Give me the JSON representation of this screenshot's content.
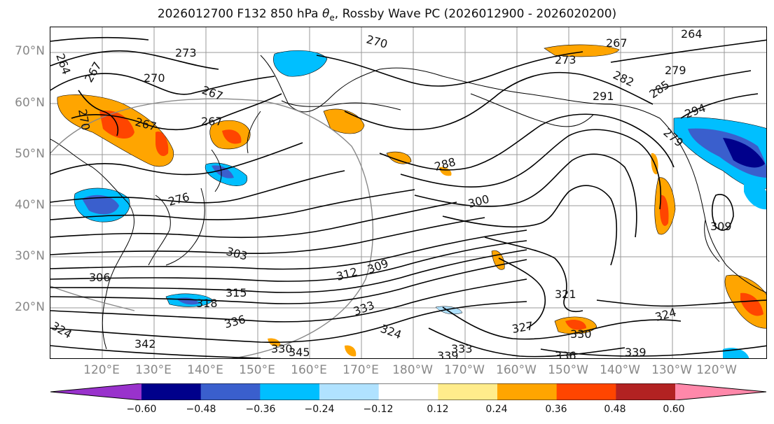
{
  "title": {
    "prefix": "2026012700 F132 850 hPa ",
    "symbol": "θ",
    "subscript": "e",
    "suffix": ", Rossby Wave PC (2026012900 - 2026020200)"
  },
  "lat_labels": [
    "70°N",
    "60°N",
    "50°N",
    "40°N",
    "30°N",
    "20°N"
  ],
  "lon_labels": [
    "120°E",
    "130°E",
    "140°E",
    "150°E",
    "160°E",
    "170°E",
    "180°W",
    "170°W",
    "160°W",
    "150°W",
    "140°W",
    "130°W",
    "120°W"
  ],
  "colorbar": {
    "colors": [
      "#9932cc",
      "#00008b",
      "#3a5fcd",
      "#00bfff",
      "#b0e2ff",
      "#ffffff",
      "#ffec8b",
      "#ffa500",
      "#ff4500",
      "#b22222",
      "#ff88aa"
    ],
    "ticks": [
      "−0.60",
      "−0.48",
      "−0.36",
      "−0.24",
      "−0.12",
      "0.12",
      "0.24",
      "0.36",
      "0.48",
      "0.60"
    ]
  },
  "contour_labels": [
    "264",
    "267",
    "273",
    "270",
    "270",
    "267",
    "264",
    "267",
    "273",
    "282",
    "279",
    "285",
    "291",
    "294",
    "279",
    "270",
    "267",
    "267",
    "288",
    "276",
    "300",
    "309",
    "303",
    "306",
    "312",
    "309",
    "315",
    "318",
    "321",
    "333",
    "324",
    "336",
    "324",
    "327",
    "330",
    "324",
    "342",
    "330",
    "345",
    "333",
    "339",
    "336",
    "339"
  ]
}
